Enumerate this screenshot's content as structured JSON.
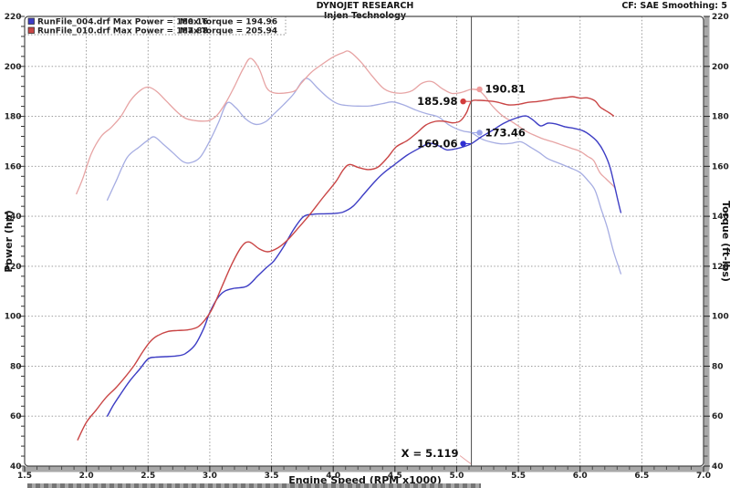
{
  "header": {
    "title": "DYNOJET RESEARCH",
    "subtitle": "Injen Technology",
    "correction": "CF: SAE  Smoothing: 5"
  },
  "legend": {
    "rows": [
      {
        "swatch_color": "#3d3dc4",
        "left": "RunFile_004.drf Max Power = 180.16",
        "right": "Max Torque = 194.96"
      },
      {
        "swatch_color": "#c94545",
        "left": "RunFile_010.drf Max Power = 187.88",
        "right": "Max Torque = 205.94"
      }
    ]
  },
  "chart_data": {
    "type": "line",
    "xlabel": "Engine Speed (RPM x1000)",
    "ylabel_left": "Power (hp)",
    "ylabel_right": "Torque (ft-lbs)",
    "xlim": [
      1.5,
      7.0
    ],
    "ylim": [
      40,
      220
    ],
    "x_major_step": 0.5,
    "x_minor_step": 0.1,
    "y_major_step": 20,
    "y_minor_step": 4,
    "x_ticks": [
      1.5,
      2.0,
      2.5,
      3.0,
      3.5,
      4.0,
      4.5,
      5.0,
      5.5,
      6.0,
      6.5,
      7.0
    ],
    "y_ticks": [
      40,
      60,
      80,
      100,
      120,
      140,
      160,
      180,
      200,
      220
    ],
    "grid": "dotted-major-both-axes",
    "legend_position": "top-left",
    "cursor": {
      "x": 5.119,
      "label": "X = 5.119",
      "connector_color": "#e7a4a4"
    },
    "runs": [
      {
        "file": "RunFile_004.drf",
        "max_power": 180.16,
        "max_torque": 194.96
      },
      {
        "file": "RunFile_010.drf",
        "max_power": 187.88,
        "max_torque": 205.94
      }
    ],
    "series": [
      {
        "name": "RunFile_004.drf Power (hp)",
        "color": "#3d3dc4",
        "width": 1.4,
        "points": [
          [
            2.17,
            60
          ],
          [
            2.22,
            64.5
          ],
          [
            2.28,
            69
          ],
          [
            2.35,
            74
          ],
          [
            2.43,
            78.7
          ],
          [
            2.5,
            82.9
          ],
          [
            2.56,
            83.6
          ],
          [
            2.64,
            83.8
          ],
          [
            2.73,
            84.1
          ],
          [
            2.8,
            85
          ],
          [
            2.88,
            88.5
          ],
          [
            2.95,
            95
          ],
          [
            3.0,
            101.5
          ],
          [
            3.06,
            107
          ],
          [
            3.12,
            110
          ],
          [
            3.2,
            111.2
          ],
          [
            3.3,
            112
          ],
          [
            3.39,
            116.2
          ],
          [
            3.46,
            119.5
          ],
          [
            3.52,
            122.2
          ],
          [
            3.6,
            128
          ],
          [
            3.68,
            134.8
          ],
          [
            3.76,
            139.9
          ],
          [
            3.84,
            140.8
          ],
          [
            3.92,
            141
          ],
          [
            4.0,
            141.1
          ],
          [
            4.08,
            141.7
          ],
          [
            4.16,
            144
          ],
          [
            4.25,
            149
          ],
          [
            4.33,
            153.5
          ],
          [
            4.4,
            157
          ],
          [
            4.51,
            161.2
          ],
          [
            4.6,
            164.5
          ],
          [
            4.7,
            167.3
          ],
          [
            4.78,
            169.2
          ],
          [
            4.85,
            168.3
          ],
          [
            4.92,
            166.6
          ],
          [
            5.0,
            167.1
          ],
          [
            5.06,
            167.9
          ],
          [
            5.119,
            169.06
          ],
          [
            5.2,
            171.8
          ],
          [
            5.29,
            174.4
          ],
          [
            5.38,
            177.2
          ],
          [
            5.48,
            179.3
          ],
          [
            5.56,
            180.16
          ],
          [
            5.62,
            178.5
          ],
          [
            5.68,
            176.2
          ],
          [
            5.74,
            177.3
          ],
          [
            5.8,
            177
          ],
          [
            5.88,
            175.8
          ],
          [
            5.95,
            175.2
          ],
          [
            6.02,
            174.3
          ],
          [
            6.08,
            172.5
          ],
          [
            6.14,
            169.8
          ],
          [
            6.19,
            166
          ],
          [
            6.24,
            160
          ],
          [
            6.28,
            152
          ],
          [
            6.31,
            145.5
          ],
          [
            6.33,
            141.5
          ]
        ]
      },
      {
        "name": "RunFile_004.drf Torque (ft-lbs)",
        "color": "#a6ade2",
        "width": 1.3,
        "points": [
          [
            2.17,
            146.5
          ],
          [
            2.24,
            154
          ],
          [
            2.33,
            163.5
          ],
          [
            2.43,
            167.8
          ],
          [
            2.5,
            170.5
          ],
          [
            2.55,
            171.8
          ],
          [
            2.62,
            169
          ],
          [
            2.7,
            165.5
          ],
          [
            2.78,
            162
          ],
          [
            2.84,
            161.4
          ],
          [
            2.92,
            163.5
          ],
          [
            3.0,
            170.2
          ],
          [
            3.07,
            177.5
          ],
          [
            3.14,
            185.3
          ],
          [
            3.21,
            183.5
          ],
          [
            3.29,
            179
          ],
          [
            3.37,
            176.8
          ],
          [
            3.45,
            177.8
          ],
          [
            3.52,
            181
          ],
          [
            3.6,
            184.8
          ],
          [
            3.68,
            189
          ],
          [
            3.75,
            194.2
          ],
          [
            3.8,
            194.96
          ],
          [
            3.87,
            191.5
          ],
          [
            3.95,
            187.8
          ],
          [
            4.03,
            185.2
          ],
          [
            4.1,
            184.4
          ],
          [
            4.2,
            184.1
          ],
          [
            4.3,
            184.2
          ],
          [
            4.4,
            185.1
          ],
          [
            4.48,
            185.8
          ],
          [
            4.57,
            184.6
          ],
          [
            4.67,
            182.5
          ],
          [
            4.76,
            181
          ],
          [
            4.85,
            179.8
          ],
          [
            4.93,
            176.8
          ],
          [
            5.0,
            175
          ],
          [
            5.06,
            174
          ],
          [
            5.119,
            173.46
          ],
          [
            5.2,
            171
          ],
          [
            5.28,
            169.7
          ],
          [
            5.36,
            169
          ],
          [
            5.44,
            169.2
          ],
          [
            5.52,
            169.8
          ],
          [
            5.6,
            167.6
          ],
          [
            5.67,
            165.5
          ],
          [
            5.74,
            163
          ],
          [
            5.83,
            161.2
          ],
          [
            5.92,
            159.4
          ],
          [
            6.0,
            157.5
          ],
          [
            6.06,
            154.5
          ],
          [
            6.12,
            150.5
          ],
          [
            6.17,
            143
          ],
          [
            6.22,
            135.5
          ],
          [
            6.27,
            126
          ],
          [
            6.31,
            120
          ],
          [
            6.33,
            117
          ]
        ]
      },
      {
        "name": "RunFile_010.drf Power (hp)",
        "color": "#c94545",
        "width": 1.4,
        "points": [
          [
            1.93,
            50.5
          ],
          [
            2.0,
            57.5
          ],
          [
            2.08,
            62.5
          ],
          [
            2.16,
            67.5
          ],
          [
            2.24,
            71.4
          ],
          [
            2.32,
            76
          ],
          [
            2.39,
            80.5
          ],
          [
            2.46,
            86
          ],
          [
            2.52,
            90
          ],
          [
            2.58,
            92.3
          ],
          [
            2.66,
            93.9
          ],
          [
            2.74,
            94.3
          ],
          [
            2.82,
            94.5
          ],
          [
            2.9,
            95.6
          ],
          [
            2.96,
            98.5
          ],
          [
            3.02,
            103
          ],
          [
            3.1,
            112
          ],
          [
            3.18,
            121
          ],
          [
            3.26,
            128
          ],
          [
            3.32,
            129.7
          ],
          [
            3.4,
            127
          ],
          [
            3.47,
            125.8
          ],
          [
            3.55,
            127.3
          ],
          [
            3.63,
            130.5
          ],
          [
            3.72,
            135.5
          ],
          [
            3.81,
            140.7
          ],
          [
            3.92,
            147.7
          ],
          [
            4.02,
            153.8
          ],
          [
            4.08,
            158.5
          ],
          [
            4.13,
            160.7
          ],
          [
            4.2,
            159.6
          ],
          [
            4.28,
            158.7
          ],
          [
            4.36,
            159.6
          ],
          [
            4.44,
            163.5
          ],
          [
            4.51,
            167.8
          ],
          [
            4.6,
            170.3
          ],
          [
            4.68,
            173.5
          ],
          [
            4.75,
            176.5
          ],
          [
            4.83,
            178
          ],
          [
            4.9,
            178
          ],
          [
            4.97,
            177.4
          ],
          [
            5.03,
            178.2
          ],
          [
            5.08,
            181.5
          ],
          [
            5.119,
            185.98
          ],
          [
            5.18,
            186.4
          ],
          [
            5.25,
            186.2
          ],
          [
            5.32,
            185.8
          ],
          [
            5.42,
            184.6
          ],
          [
            5.5,
            184.8
          ],
          [
            5.58,
            185.6
          ],
          [
            5.65,
            185.9
          ],
          [
            5.73,
            186.5
          ],
          [
            5.8,
            187.1
          ],
          [
            5.88,
            187.5
          ],
          [
            5.94,
            187.88
          ],
          [
            6.0,
            187.3
          ],
          [
            6.06,
            187.4
          ],
          [
            6.12,
            186.2
          ],
          [
            6.16,
            183.8
          ],
          [
            6.2,
            182.5
          ],
          [
            6.24,
            181.3
          ],
          [
            6.27,
            180.2
          ]
        ]
      },
      {
        "name": "RunFile_010.drf Torque (ft-lbs)",
        "color": "#e7a4a4",
        "width": 1.3,
        "points": [
          [
            1.92,
            149
          ],
          [
            1.97,
            155
          ],
          [
            2.04,
            165
          ],
          [
            2.12,
            172
          ],
          [
            2.2,
            175.5
          ],
          [
            2.28,
            180
          ],
          [
            2.36,
            186.5
          ],
          [
            2.44,
            190.5
          ],
          [
            2.5,
            191.7
          ],
          [
            2.57,
            190
          ],
          [
            2.65,
            186
          ],
          [
            2.73,
            182
          ],
          [
            2.8,
            179.3
          ],
          [
            2.88,
            178.3
          ],
          [
            2.95,
            178.1
          ],
          [
            3.0,
            178.4
          ],
          [
            3.06,
            180.5
          ],
          [
            3.13,
            185.5
          ],
          [
            3.2,
            192
          ],
          [
            3.27,
            199
          ],
          [
            3.33,
            203.2
          ],
          [
            3.4,
            199
          ],
          [
            3.46,
            191.5
          ],
          [
            3.52,
            189.4
          ],
          [
            3.6,
            189.3
          ],
          [
            3.69,
            190.2
          ],
          [
            3.74,
            193.2
          ],
          [
            3.82,
            197.5
          ],
          [
            3.9,
            200.5
          ],
          [
            4.0,
            203.8
          ],
          [
            4.08,
            205.5
          ],
          [
            4.13,
            205.94
          ],
          [
            4.22,
            202
          ],
          [
            4.31,
            196.5
          ],
          [
            4.4,
            191.5
          ],
          [
            4.47,
            189.7
          ],
          [
            4.56,
            189.3
          ],
          [
            4.64,
            190.3
          ],
          [
            4.72,
            193.3
          ],
          [
            4.8,
            193.9
          ],
          [
            4.88,
            191.2
          ],
          [
            4.96,
            189.2
          ],
          [
            5.04,
            189.6
          ],
          [
            5.119,
            190.81
          ],
          [
            5.18,
            190.3
          ],
          [
            5.23,
            188
          ],
          [
            5.29,
            184.1
          ],
          [
            5.37,
            180.3
          ],
          [
            5.44,
            178.1
          ],
          [
            5.51,
            175.8
          ],
          [
            5.57,
            173.8
          ],
          [
            5.64,
            172.2
          ],
          [
            5.71,
            170.8
          ],
          [
            5.79,
            169.6
          ],
          [
            5.86,
            168.4
          ],
          [
            5.93,
            167.2
          ],
          [
            6.0,
            166
          ],
          [
            6.06,
            164
          ],
          [
            6.11,
            162.3
          ],
          [
            6.16,
            157.5
          ],
          [
            6.21,
            155
          ],
          [
            6.26,
            152.6
          ],
          [
            6.28,
            151.5
          ]
        ]
      }
    ],
    "annotations": [
      {
        "label": "185.98",
        "x": 5.119,
        "y": 185.98,
        "side": "left",
        "color": "#d23b3b"
      },
      {
        "label": "190.81",
        "x": 5.119,
        "y": 190.81,
        "side": "right",
        "color": "#ef9c9c"
      },
      {
        "label": "169.06",
        "x": 5.119,
        "y": 169.06,
        "side": "left",
        "color": "#2f2fd2"
      },
      {
        "label": "173.46",
        "x": 5.119,
        "y": 173.46,
        "side": "right",
        "color": "#9aa4ea"
      }
    ]
  },
  "colors": {
    "frame": "#4a4a4a",
    "grid": "#8f8f8f",
    "axis_bar": "#a8a8a8",
    "tick": "#333333",
    "cursor": "#5a5a5a",
    "text": "#141414"
  }
}
